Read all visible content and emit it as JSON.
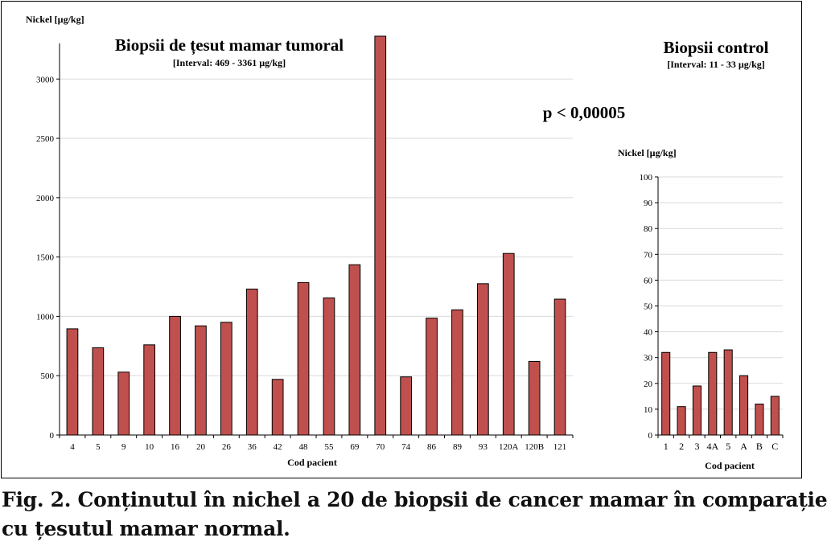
{
  "p_value": "p < 0,00005",
  "caption": {
    "line1": "Fig. 2. Conținutul în nichel a 20 de biopsii de cancer mamar în comparație",
    "line2": "cu țesutul mamar normal."
  },
  "colors": {
    "bar": "#c0504d",
    "bar_stroke": "#000000",
    "grid": "#d9d9d9"
  },
  "chart_data": [
    {
      "type": "bar",
      "title": "Biopsii de țesut mamar tumoral",
      "subtitle": "[Interval: 469 - 3361 µg/kg]",
      "ylabel": "Nickel [µg/kg]",
      "xlabel": "Cod pacient",
      "categories": [
        "4",
        "5",
        "9",
        "10",
        "16",
        "20",
        "26",
        "36",
        "42",
        "48",
        "55",
        "69",
        "70",
        "74",
        "86",
        "89",
        "93",
        "120A",
        "120B",
        "121"
      ],
      "values": [
        895,
        735,
        530,
        760,
        1000,
        920,
        950,
        1230,
        469,
        1285,
        1155,
        1435,
        3361,
        490,
        985,
        1055,
        1275,
        1530,
        620,
        1145
      ],
      "ylim": [
        0,
        3300
      ],
      "yticks": [
        "0",
        "500",
        "1000",
        "1500",
        "2000",
        "2500",
        "3000"
      ],
      "grid": true
    },
    {
      "type": "bar",
      "title": "Biopsii control",
      "subtitle": "[Interval: 11 - 33 µg/kg]",
      "ylabel": "Nickel [µg/kg]",
      "xlabel": "Cod pacient",
      "categories": [
        "1",
        "2",
        "3",
        "4A",
        "5",
        "A",
        "B",
        "C"
      ],
      "values": [
        32,
        11,
        19,
        32,
        33,
        23,
        12,
        15
      ],
      "ylim": [
        0,
        100
      ],
      "yticks": [
        "0",
        "10",
        "20",
        "30",
        "40",
        "50",
        "60",
        "70",
        "80",
        "90",
        "100"
      ],
      "grid": true
    }
  ]
}
